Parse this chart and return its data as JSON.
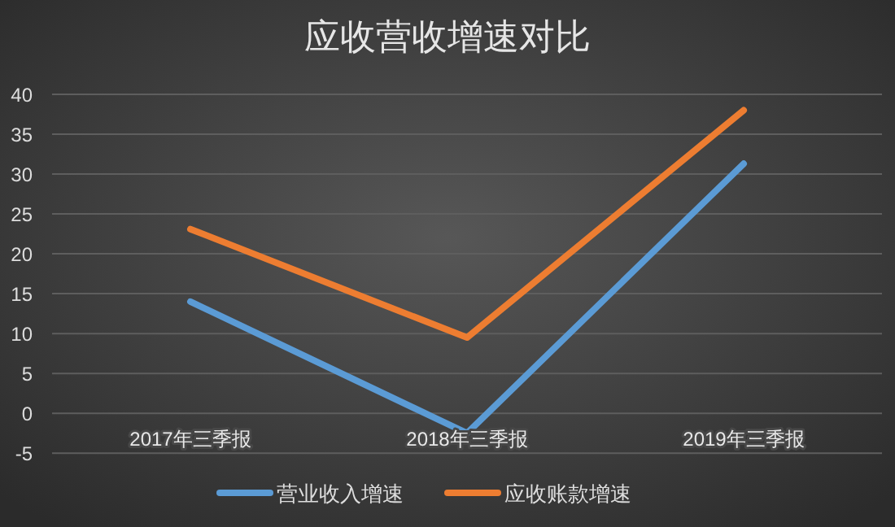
{
  "chart_data": {
    "type": "line",
    "title": "应收营收增速对比",
    "categories": [
      "2017年三季报",
      "2018年三季报",
      "2019年三季报"
    ],
    "series": [
      {
        "name": "营业收入增速",
        "color": "#5b9bd5",
        "values": [
          14,
          -2.5,
          31.3
        ]
      },
      {
        "name": "应收账款增速",
        "color": "#ed7d31",
        "values": [
          23.1,
          9.5,
          38
        ]
      }
    ],
    "ylim": [
      -5,
      40
    ],
    "yticks": [
      -5,
      0,
      5,
      10,
      15,
      20,
      25,
      30,
      35,
      40
    ],
    "grid": "y",
    "legend": "bottom",
    "marker": "none",
    "line_style": "solid"
  }
}
